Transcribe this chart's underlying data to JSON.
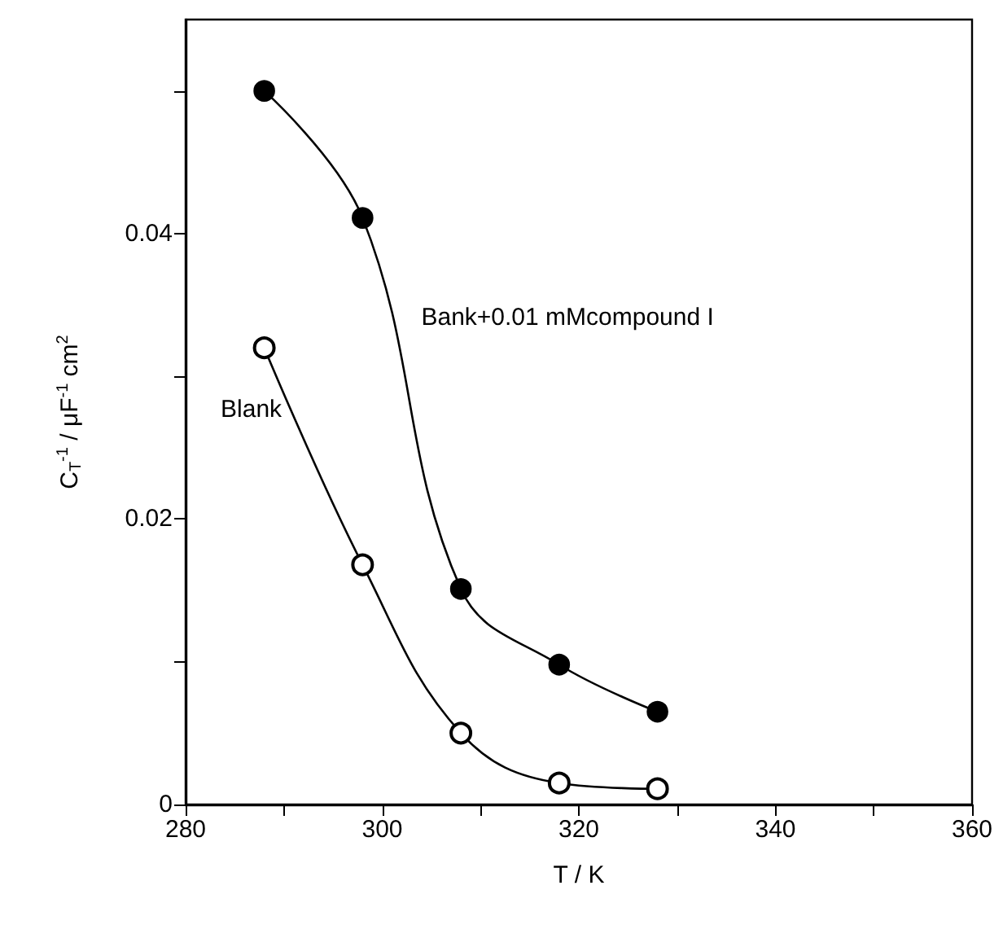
{
  "chart_data": {
    "type": "line",
    "xlabel": "T / K",
    "ylabel": "C$_{T}$$^{-1}$ / μF$^{-1}$ cm$^{2}$",
    "x": [
      288,
      298,
      308,
      318,
      328
    ],
    "series": [
      {
        "name": "Bank+0.01 mMcompound I",
        "color": "#000000",
        "values": [
          0.05,
          0.0411,
          0.0151,
          0.0098,
          0.0065
        ]
      },
      {
        "name": "Blank",
        "color": "#000000",
        "values": [
          0.032,
          0.0168,
          0.005,
          0.0015,
          0.0011
        ]
      }
    ],
    "xlim": [
      280,
      360
    ],
    "xticks": [
      280,
      {
        "value": 290,
        "label": null
      },
      300,
      {
        "value": 310,
        "label": null
      },
      320,
      {
        "value": 330,
        "label": null
      },
      340,
      {
        "value": 350,
        "label": null
      },
      360
    ],
    "ylim": [
      0,
      0.055
    ],
    "yticks": [
      0,
      {
        "value": 0.01,
        "label": null
      },
      0.02,
      {
        "value": 0.03,
        "label": null
      },
      0.04,
      {
        "value": 0.05,
        "label": null
      }
    ],
    "grid": false,
    "legend": false,
    "marker": "circle",
    "line_style": "solid"
  }
}
